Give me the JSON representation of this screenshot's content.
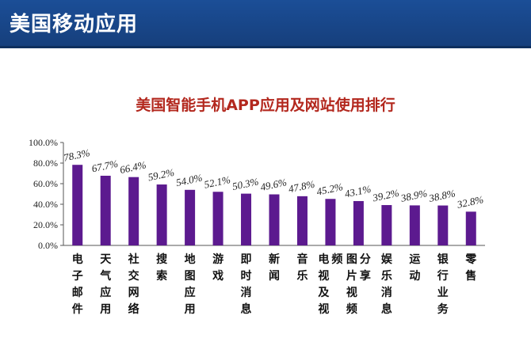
{
  "header": {
    "title": "美国移动应用"
  },
  "colors": {
    "header_bg": "#1b4e97",
    "bar": "#5c1a8f",
    "title": "#b3281e"
  },
  "chart_data": {
    "type": "bar",
    "title": "美国智能手机APP应用及网站使用排行",
    "categories": [
      "电子邮件",
      "天气应用",
      "社交网络",
      "搜索",
      "地图应用",
      "游戏",
      "即时消息",
      "新闻",
      "音乐",
      "电视及视频",
      "图片视频分享",
      "娱乐消息",
      "运动",
      "银行业务",
      "零售"
    ],
    "values": [
      78.3,
      67.7,
      66.4,
      59.2,
      54.0,
      52.1,
      50.3,
      49.6,
      47.8,
      45.2,
      43.1,
      39.2,
      38.9,
      38.8,
      32.8
    ],
    "value_labels": [
      "78.3%",
      "67.7%",
      "66.4%",
      "59.2%",
      "54.0%",
      "52.1%",
      "50.3%",
      "49.6%",
      "47.8%",
      "45.2%",
      "43.1%",
      "39.2%",
      "38.9%",
      "38.8%",
      "32.8%"
    ],
    "yticks": [
      "0.0%",
      "20.0%",
      "40.0%",
      "60.0%",
      "80.0%",
      "100.0%"
    ],
    "ylim": [
      0,
      100
    ],
    "grid": false,
    "legend": "none"
  }
}
